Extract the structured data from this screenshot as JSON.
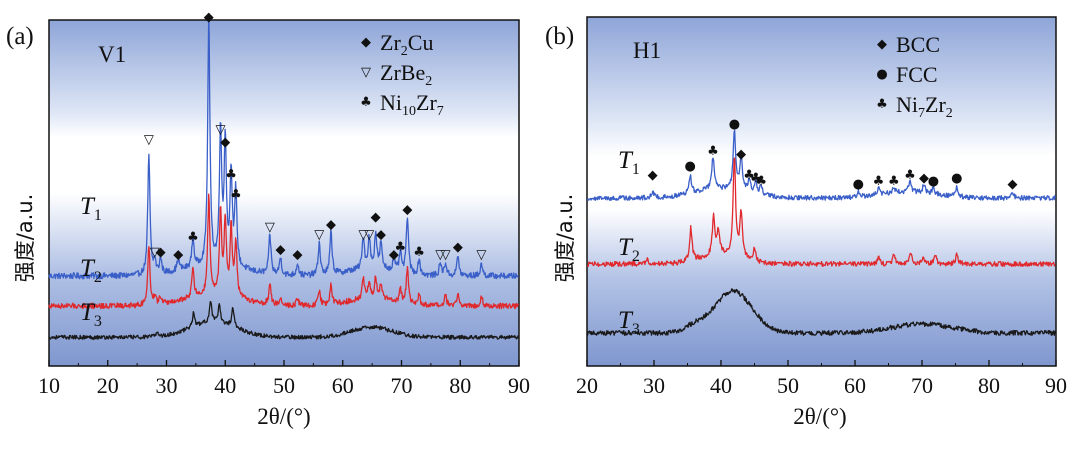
{
  "chart_data": [
    {
      "type": "line",
      "panel": "(a)",
      "sample": "V1",
      "xlabel": "2θ/(°)",
      "ylabel": "强度/a.u.",
      "xlim": [
        10,
        90
      ],
      "x_ticks": [
        10,
        20,
        30,
        40,
        50,
        60,
        70,
        80,
        90
      ],
      "y_ticks": [],
      "legend": [
        {
          "symbol": "◆",
          "label": "Zr2Cu",
          "base": "Zr",
          "sub": "2",
          "rest": "Cu"
        },
        {
          "symbol": "▽",
          "label": "ZrBe2",
          "base": "ZrBe",
          "sub": "2",
          "rest": ""
        },
        {
          "symbol": "♣",
          "label": "Ni10Zr7",
          "base": "Ni",
          "sub": "10",
          "rest": "Zr",
          "sub2": "7"
        }
      ],
      "series": [
        {
          "name": "T1",
          "label_base": "T",
          "label_sub": "1",
          "color": "#3a5fc8",
          "baseline": 0.36,
          "peaks": [
            [
              27.0,
              0.48
            ],
            [
              28.0,
              0.05
            ],
            [
              29.0,
              0.06
            ],
            [
              32.0,
              0.05
            ],
            [
              34.5,
              0.12
            ],
            [
              37.2,
              1.0
            ],
            [
              39.2,
              0.55
            ],
            [
              40.0,
              0.5
            ],
            [
              41.0,
              0.38
            ],
            [
              41.8,
              0.3
            ],
            [
              47.6,
              0.16
            ],
            [
              49.4,
              0.07
            ],
            [
              52.3,
              0.05
            ],
            [
              56.0,
              0.13
            ],
            [
              58.0,
              0.17
            ],
            [
              63.5,
              0.13
            ],
            [
              64.5,
              0.12
            ],
            [
              65.6,
              0.14
            ],
            [
              66.5,
              0.1
            ],
            [
              68.7,
              0.05
            ],
            [
              69.8,
              0.08
            ],
            [
              71.0,
              0.23
            ],
            [
              73.0,
              0.06
            ],
            [
              76.6,
              0.05
            ],
            [
              77.5,
              0.05
            ],
            [
              79.6,
              0.08
            ],
            [
              83.6,
              0.05
            ]
          ],
          "humps": [
            [
              38.0,
              5.0,
              0.04
            ],
            [
              65.0,
              4.0,
              0.03
            ]
          ],
          "noise": 0.012
        },
        {
          "name": "T2",
          "label_base": "T",
          "label_sub": "2",
          "color": "#e0292d",
          "baseline": 0.24,
          "peaks": [
            [
              27.0,
              0.24
            ],
            [
              28.0,
              0.03
            ],
            [
              29.0,
              0.03
            ],
            [
              34.5,
              0.12
            ],
            [
              37.2,
              0.4
            ],
            [
              39.2,
              0.33
            ],
            [
              40.0,
              0.3
            ],
            [
              41.0,
              0.28
            ],
            [
              41.8,
              0.22
            ],
            [
              47.6,
              0.08
            ],
            [
              49.4,
              0.03
            ],
            [
              52.3,
              0.03
            ],
            [
              56.0,
              0.06
            ],
            [
              58.0,
              0.08
            ],
            [
              63.5,
              0.08
            ],
            [
              64.5,
              0.07
            ],
            [
              65.6,
              0.08
            ],
            [
              66.5,
              0.06
            ],
            [
              69.8,
              0.05
            ],
            [
              71.0,
              0.14
            ],
            [
              73.0,
              0.04
            ],
            [
              77.5,
              0.04
            ],
            [
              79.6,
              0.05
            ],
            [
              83.6,
              0.04
            ]
          ],
          "humps": [
            [
              38.0,
              5.0,
              0.04
            ],
            [
              65.0,
              4.0,
              0.03
            ]
          ],
          "noise": 0.011
        },
        {
          "name": "T3",
          "label_base": "T",
          "label_sub": "3",
          "color": "#1a1a1a",
          "baseline": 0.115,
          "peaks": [
            [
              28.4,
              0.02
            ],
            [
              34.6,
              0.055
            ],
            [
              37.5,
              0.09
            ],
            [
              39.0,
              0.07
            ],
            [
              41.3,
              0.08
            ]
          ],
          "humps": [
            [
              38.0,
              4.0,
              0.06
            ],
            [
              65.0,
              3.5,
              0.04
            ]
          ],
          "noise": 0.008
        }
      ],
      "markers": [
        {
          "x": 27.0,
          "symbol": "▽",
          "y": 0.91
        },
        {
          "x": 28.0,
          "symbol": "▽",
          "y": 0.46
        },
        {
          "x": 29.0,
          "symbol": "◆",
          "y": 0.46
        },
        {
          "x": 32.0,
          "symbol": "◆",
          "y": 0.45
        },
        {
          "x": 34.5,
          "symbol": "♣",
          "y": 0.52
        },
        {
          "x": 37.2,
          "symbol": "◆",
          "y": 1.4
        },
        {
          "x": 39.2,
          "symbol": "▽",
          "y": 0.95
        },
        {
          "x": 40.0,
          "symbol": "◆",
          "y": 0.9
        },
        {
          "x": 41.0,
          "symbol": "♣",
          "y": 0.77
        },
        {
          "x": 41.8,
          "symbol": "♣",
          "y": 0.69
        },
        {
          "x": 47.6,
          "symbol": "▽",
          "y": 0.56
        },
        {
          "x": 49.4,
          "symbol": "◆",
          "y": 0.47
        },
        {
          "x": 52.3,
          "symbol": "◆",
          "y": 0.45
        },
        {
          "x": 56.0,
          "symbol": "▽",
          "y": 0.53
        },
        {
          "x": 58.0,
          "symbol": "◆",
          "y": 0.57
        },
        {
          "x": 63.5,
          "symbol": "▽",
          "y": 0.53
        },
        {
          "x": 64.5,
          "symbol": "▽",
          "y": 0.53
        },
        {
          "x": 65.6,
          "symbol": "◆",
          "y": 0.6
        },
        {
          "x": 66.5,
          "symbol": "◆",
          "y": 0.53
        },
        {
          "x": 68.7,
          "symbol": "◆",
          "y": 0.45
        },
        {
          "x": 69.8,
          "symbol": "♣",
          "y": 0.48
        },
        {
          "x": 71.0,
          "symbol": "◆",
          "y": 0.63
        },
        {
          "x": 73.0,
          "symbol": "♣",
          "y": 0.46
        },
        {
          "x": 76.6,
          "symbol": "▽",
          "y": 0.45
        },
        {
          "x": 77.5,
          "symbol": "▽",
          "y": 0.45
        },
        {
          "x": 79.6,
          "symbol": "◆",
          "y": 0.48
        },
        {
          "x": 83.6,
          "symbol": "▽",
          "y": 0.45
        }
      ]
    },
    {
      "type": "line",
      "panel": "(b)",
      "sample": "H1",
      "xlabel": "2θ/(°)",
      "ylabel": "强度/a.u.",
      "xlim": [
        20,
        90
      ],
      "x_ticks": [
        20,
        30,
        40,
        50,
        60,
        70,
        80,
        90
      ],
      "y_ticks": [],
      "legend": [
        {
          "symbol": "◆",
          "label": "BCC",
          "base": "BCC",
          "sub": "",
          "rest": ""
        },
        {
          "symbol": "●",
          "label": "FCC",
          "base": "FCC",
          "sub": "",
          "rest": ""
        },
        {
          "symbol": "♣",
          "label": "Ni7Zr2",
          "base": "Ni",
          "sub": "7",
          "rest": "Zr",
          "sub2": "2"
        }
      ],
      "series": [
        {
          "name": "T1",
          "label_base": "T",
          "label_sub": "1",
          "color": "#3a5fc8",
          "baseline": 0.56,
          "peaks": [
            [
              29.8,
              0.02
            ],
            [
              35.4,
              0.06
            ],
            [
              38.8,
              0.11
            ],
            [
              42.0,
              0.2
            ],
            [
              43.0,
              0.11
            ],
            [
              44.2,
              0.04
            ],
            [
              45.2,
              0.04
            ],
            [
              46.0,
              0.03
            ],
            [
              60.5,
              0.02
            ],
            [
              63.5,
              0.02
            ],
            [
              65.8,
              0.02
            ],
            [
              68.2,
              0.04
            ],
            [
              70.3,
              0.03
            ],
            [
              71.7,
              0.02
            ],
            [
              75.2,
              0.03
            ],
            [
              83.5,
              0.02
            ]
          ],
          "humps": [
            [
              40.0,
              4.0,
              0.03
            ],
            [
              68.0,
              4.0,
              0.02
            ]
          ],
          "noise": 0.008
        },
        {
          "name": "T2",
          "label_base": "T",
          "label_sub": "2",
          "color": "#e0292d",
          "baseline": 0.34,
          "peaks": [
            [
              29.0,
              0.02
            ],
            [
              35.5,
              0.11
            ],
            [
              38.9,
              0.13
            ],
            [
              39.6,
              0.08
            ],
            [
              42.0,
              0.33
            ],
            [
              43.0,
              0.15
            ],
            [
              45.0,
              0.04
            ],
            [
              63.5,
              0.02
            ],
            [
              65.8,
              0.03
            ],
            [
              68.3,
              0.04
            ],
            [
              70.2,
              0.02
            ],
            [
              72.0,
              0.03
            ],
            [
              75.2,
              0.03
            ]
          ],
          "humps": [
            [
              40.0,
              3.0,
              0.03
            ]
          ],
          "noise": 0.008
        },
        {
          "name": "T3",
          "label_base": "T",
          "label_sub": "3",
          "color": "#1a1a1a",
          "baseline": 0.11,
          "peaks": [],
          "humps": [
            [
              41.8,
              2.8,
              0.14
            ],
            [
              36.0,
              1.5,
              0.02
            ],
            [
              70.0,
              4.5,
              0.03
            ]
          ],
          "noise": 0.008
        }
      ],
      "markers": [
        {
          "x": 29.8,
          "symbol": "◆",
          "y": 0.64
        },
        {
          "x": 35.4,
          "symbol": "●",
          "y": 0.67
        },
        {
          "x": 38.8,
          "symbol": "♣",
          "y": 0.72
        },
        {
          "x": 42.0,
          "symbol": "●",
          "y": 0.81
        },
        {
          "x": 43.0,
          "symbol": "◆",
          "y": 0.71
        },
        {
          "x": 44.2,
          "symbol": "♣",
          "y": 0.64
        },
        {
          "x": 45.2,
          "symbol": "♣",
          "y": 0.63
        },
        {
          "x": 46.0,
          "symbol": "♣",
          "y": 0.62
        },
        {
          "x": 60.5,
          "symbol": "●",
          "y": 0.61
        },
        {
          "x": 63.5,
          "symbol": "♣",
          "y": 0.62
        },
        {
          "x": 65.8,
          "symbol": "♣",
          "y": 0.62
        },
        {
          "x": 68.2,
          "symbol": "♣",
          "y": 0.64
        },
        {
          "x": 70.3,
          "symbol": "◆",
          "y": 0.63
        },
        {
          "x": 71.7,
          "symbol": "●",
          "y": 0.62
        },
        {
          "x": 75.2,
          "symbol": "●",
          "y": 0.63
        },
        {
          "x": 83.5,
          "symbol": "◆",
          "y": 0.61
        }
      ]
    }
  ]
}
